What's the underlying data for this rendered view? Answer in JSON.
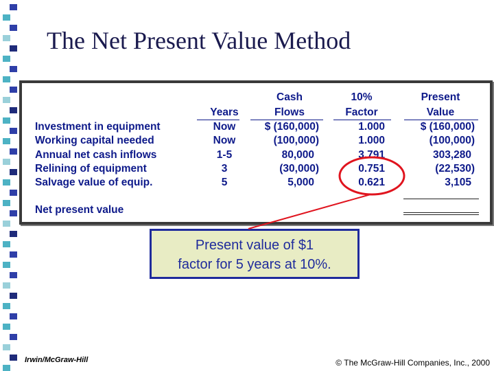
{
  "slide": {
    "title": "The Net Present Value Method"
  },
  "table": {
    "headers": {
      "years": "Years",
      "cash_top": "Cash",
      "cash_bottom": "Flows",
      "factor_top": "10%",
      "factor_bottom": "Factor",
      "pv_top": "Present",
      "pv_bottom": "Value"
    },
    "rows": [
      {
        "label": "Investment in equipment",
        "years": "Now",
        "cash": "$ (160,000)",
        "factor": "1.000",
        "pv": "$  (160,000)"
      },
      {
        "label": "Working capital needed",
        "years": "Now",
        "cash": "(100,000)",
        "factor": "1.000",
        "pv": "(100,000)"
      },
      {
        "label": "Annual net cash inflows",
        "years": "1-5",
        "cash": "80,000",
        "factor": "3.791",
        "pv": "303,280"
      },
      {
        "label": "Relining of equipment",
        "years": "3",
        "cash": "(30,000)",
        "factor": "0.751",
        "pv": "(22,530)"
      },
      {
        "label": "Salvage value of equip.",
        "years": "5",
        "cash": "5,000",
        "factor": "0.621",
        "pv": "3,105"
      }
    ],
    "net_label": "Net present value"
  },
  "callout": {
    "line1": "Present value of $1",
    "line2": "factor for 5 years at 10%."
  },
  "footer": {
    "left": "Irwin/McGraw-Hill",
    "right": "© The McGraw-Hill Companies, Inc., 2000"
  },
  "colors": {
    "table_text": "#0e1a8a",
    "highlight_ring": "#e0141e",
    "callout_fill": "#e8ecc4",
    "callout_border": "#1f2b9c"
  }
}
